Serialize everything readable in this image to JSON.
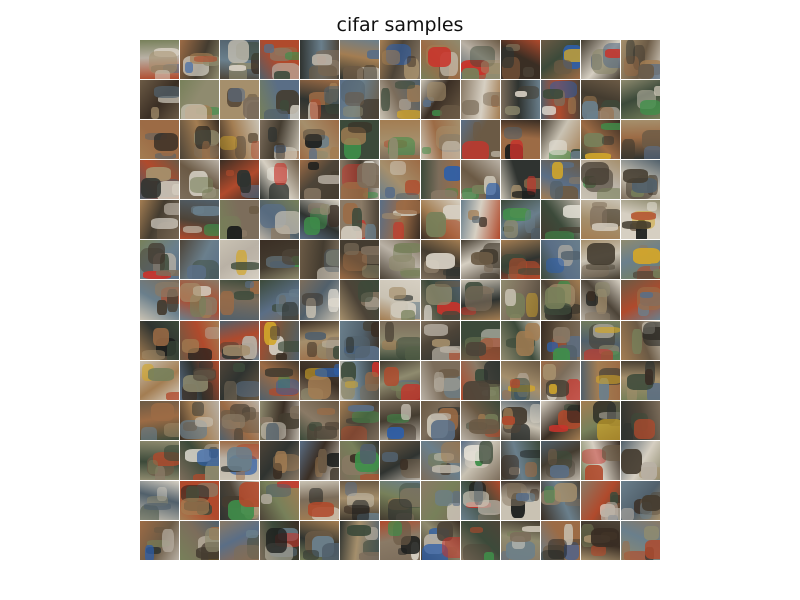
{
  "figure": {
    "title": "cifar samples"
  },
  "grid": {
    "rows": 13,
    "cols": 13,
    "palette": [
      "#6b5a45",
      "#3c4a3a",
      "#8a7a66",
      "#a58f6c",
      "#4d4438",
      "#7c6d5b",
      "#b9b1a5",
      "#2f3330",
      "#9c6b45",
      "#51606b",
      "#c9c2b3",
      "#3a2e24",
      "#77805a",
      "#b04a2c",
      "#5a6e86",
      "#d6cfc2",
      "#8f8b6f",
      "#443c30",
      "#a37d52",
      "#6a7f8c"
    ],
    "accents": [
      "#c8332b",
      "#2e5fa8",
      "#d2a62a",
      "#3f8f4a",
      "#e4e0d6",
      "#1b1d1c"
    ]
  }
}
